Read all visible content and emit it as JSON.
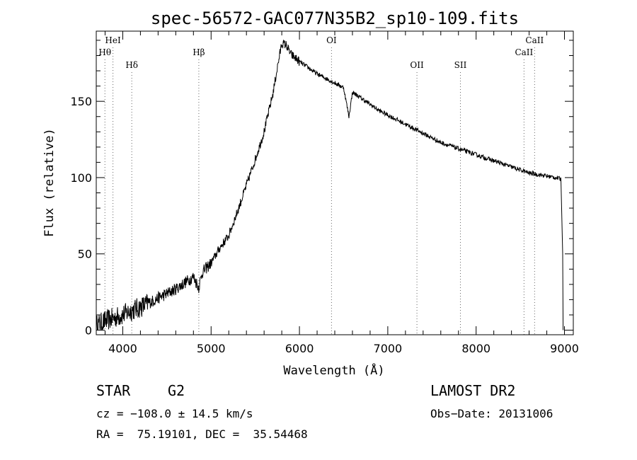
{
  "chart_data": {
    "type": "line",
    "title": "spec-56572-GAC077N35B2_sp10-109.fits",
    "xlabel": "Wavelength (Å)",
    "ylabel": "Flux (relative)",
    "xlim": [
      3700,
      9100
    ],
    "ylim": [
      -3,
      196
    ],
    "xticks": [
      4000,
      5000,
      6000,
      7000,
      8000,
      9000
    ],
    "yticks": [
      0,
      50,
      100,
      150
    ],
    "grid": false,
    "series": [
      {
        "x": [
          3700,
          3800,
          3900,
          4000,
          4100,
          4200,
          4300,
          4400,
          4500,
          4600,
          4700,
          4800,
          4860,
          4900,
          5000,
          5100,
          5200,
          5300,
          5400,
          5500,
          5600,
          5700,
          5750,
          5800,
          5850,
          5900,
          6000,
          6100,
          6200,
          6300,
          6400,
          6500,
          6560,
          6600,
          6700,
          6800,
          6900,
          7000,
          7100,
          7200,
          7300,
          7400,
          7500,
          7600,
          7700,
          7800,
          7900,
          8000,
          8100,
          8200,
          8300,
          8400,
          8500,
          8600,
          8700,
          8800,
          8900,
          8960,
          8980,
          8985
        ],
        "y": [
          3,
          6,
          8,
          10,
          13,
          15,
          18,
          21,
          24,
          27,
          31,
          35,
          28,
          38,
          44,
          54,
          62,
          78,
          95,
          112,
          130,
          155,
          172,
          188,
          187,
          181,
          176,
          172,
          168,
          165,
          162,
          159,
          140,
          156,
          152,
          148,
          144,
          141,
          138,
          135,
          132,
          129,
          126,
          123,
          121,
          119,
          117,
          115,
          113,
          111,
          109,
          107,
          105,
          103,
          102,
          101,
          100,
          99,
          50,
          0
        ]
      }
    ],
    "lines": [
      {
        "name": "HeI",
        "x": 3889,
        "row": 0
      },
      {
        "name": "Hθ",
        "x": 3798,
        "row": 1
      },
      {
        "name": "Hδ",
        "x": 4102,
        "row": 2
      },
      {
        "name": "Hβ",
        "x": 4861,
        "row": 1
      },
      {
        "name": "OI",
        "x": 6363,
        "row": 0
      },
      {
        "name": "OII",
        "x": 7330,
        "row": 2
      },
      {
        "name": "SII",
        "x": 7822,
        "row": 2
      },
      {
        "name": "CaII",
        "x": 8542,
        "row": 1
      },
      {
        "name": "CaII",
        "x": 8662,
        "row": 0
      }
    ]
  },
  "info": {
    "object_type": "STAR",
    "subclass": "G2",
    "survey": "LAMOST DR2",
    "cz": "cz = −108.0 ± 14.5 km/s",
    "obs_date": "Obs−Date: 20131006",
    "coords": "RA =  75.19101, DEC =  35.54468"
  }
}
